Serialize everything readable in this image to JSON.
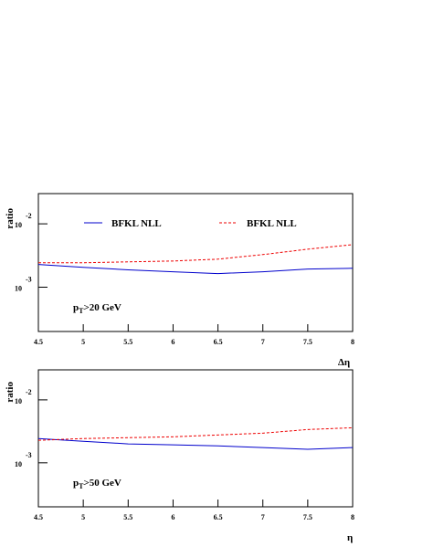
{
  "chart_data": [
    {
      "type": "line",
      "ylabel": "ratio",
      "xlabel": "Δη",
      "annotation": {
        "text": "p",
        "sub": "T",
        "rest": ">20 GeV"
      },
      "x": [
        4.5,
        5,
        5.5,
        6,
        6.5,
        7,
        7.5,
        8
      ],
      "series": [
        {
          "name": "BFKL NLL",
          "color": "#0000cc",
          "dash": "solid",
          "values": [
            0.00228,
            0.00206,
            0.00188,
            0.00175,
            0.00164,
            0.00175,
            0.00193,
            0.00199
          ]
        },
        {
          "name": "BFKL NLL",
          "color": "#ee0000",
          "dash": "dashed",
          "values": [
            0.00243,
            0.00243,
            0.00251,
            0.00259,
            0.00277,
            0.00327,
            0.00398,
            0.00469
          ]
        }
      ],
      "xlim": [
        4.5,
        8
      ],
      "xticks": [
        4.5,
        5,
        5.5,
        6,
        6.5,
        7,
        7.5,
        8
      ],
      "ylim": [
        0.0002,
        0.03
      ],
      "log_y": true,
      "yticks": [
        {
          "value": 0.01,
          "label": "10",
          "exponent": "-2"
        },
        {
          "value": 0.001,
          "label": "10",
          "exponent": "-3"
        }
      ]
    },
    {
      "type": "line",
      "ylabel": "ratio",
      "xlabel": "η",
      "annotation": {
        "text": "p",
        "sub": "T",
        "rest": ">50 GeV"
      },
      "x": [
        4.5,
        5,
        5.5,
        6,
        6.5,
        7,
        7.5,
        8
      ],
      "series": [
        {
          "color": "#0000cc",
          "dash": "solid",
          "values": [
            0.00243,
            0.0022,
            0.002,
            0.00193,
            0.00186,
            0.00175,
            0.00164,
            0.00175
          ]
        },
        {
          "color": "#ee0000",
          "dash": "dashed",
          "values": [
            0.00228,
            0.00243,
            0.00251,
            0.00259,
            0.00277,
            0.00296,
            0.00338,
            0.00361
          ]
        }
      ],
      "xlim": [
        4.5,
        8
      ],
      "xticks": [
        4.5,
        5,
        5.5,
        6,
        6.5,
        7,
        7.5,
        8
      ],
      "ylim": [
        0.0002,
        0.03
      ],
      "log_y": true,
      "yticks": [
        {
          "value": 0.01,
          "label": "10",
          "exponent": "-2"
        },
        {
          "value": 0.001,
          "label": "10",
          "exponent": "-3"
        }
      ]
    }
  ]
}
